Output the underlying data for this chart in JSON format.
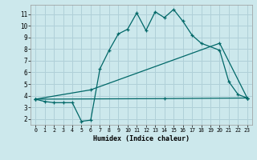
{
  "xlabel": "Humidex (Indice chaleur)",
  "bg_color": "#cce8ec",
  "grid_color": "#b0d0d8",
  "line_color": "#006868",
  "xlim": [
    -0.5,
    23.5
  ],
  "ylim": [
    1.5,
    11.8
  ],
  "xticks": [
    0,
    1,
    2,
    3,
    4,
    5,
    6,
    7,
    8,
    9,
    10,
    11,
    12,
    13,
    14,
    15,
    16,
    17,
    18,
    19,
    20,
    21,
    22,
    23
  ],
  "yticks": [
    2,
    3,
    4,
    5,
    6,
    7,
    8,
    9,
    10,
    11
  ],
  "line1_x": [
    0,
    1,
    2,
    3,
    4,
    5,
    6,
    7,
    8,
    9,
    10,
    11,
    12,
    13,
    14,
    15,
    16,
    17,
    18,
    20,
    21,
    22,
    23
  ],
  "line1_y": [
    3.7,
    3.5,
    3.4,
    3.4,
    3.4,
    1.8,
    1.9,
    6.3,
    7.9,
    9.3,
    9.7,
    11.1,
    9.6,
    11.2,
    10.7,
    11.4,
    10.4,
    9.2,
    8.5,
    7.9,
    5.2,
    4.1,
    3.8
  ],
  "line2_x": [
    0,
    6,
    20,
    23
  ],
  "line2_y": [
    3.7,
    4.5,
    8.5,
    3.8
  ],
  "line3_x": [
    0,
    14,
    23
  ],
  "line3_y": [
    3.7,
    3.75,
    3.8
  ]
}
